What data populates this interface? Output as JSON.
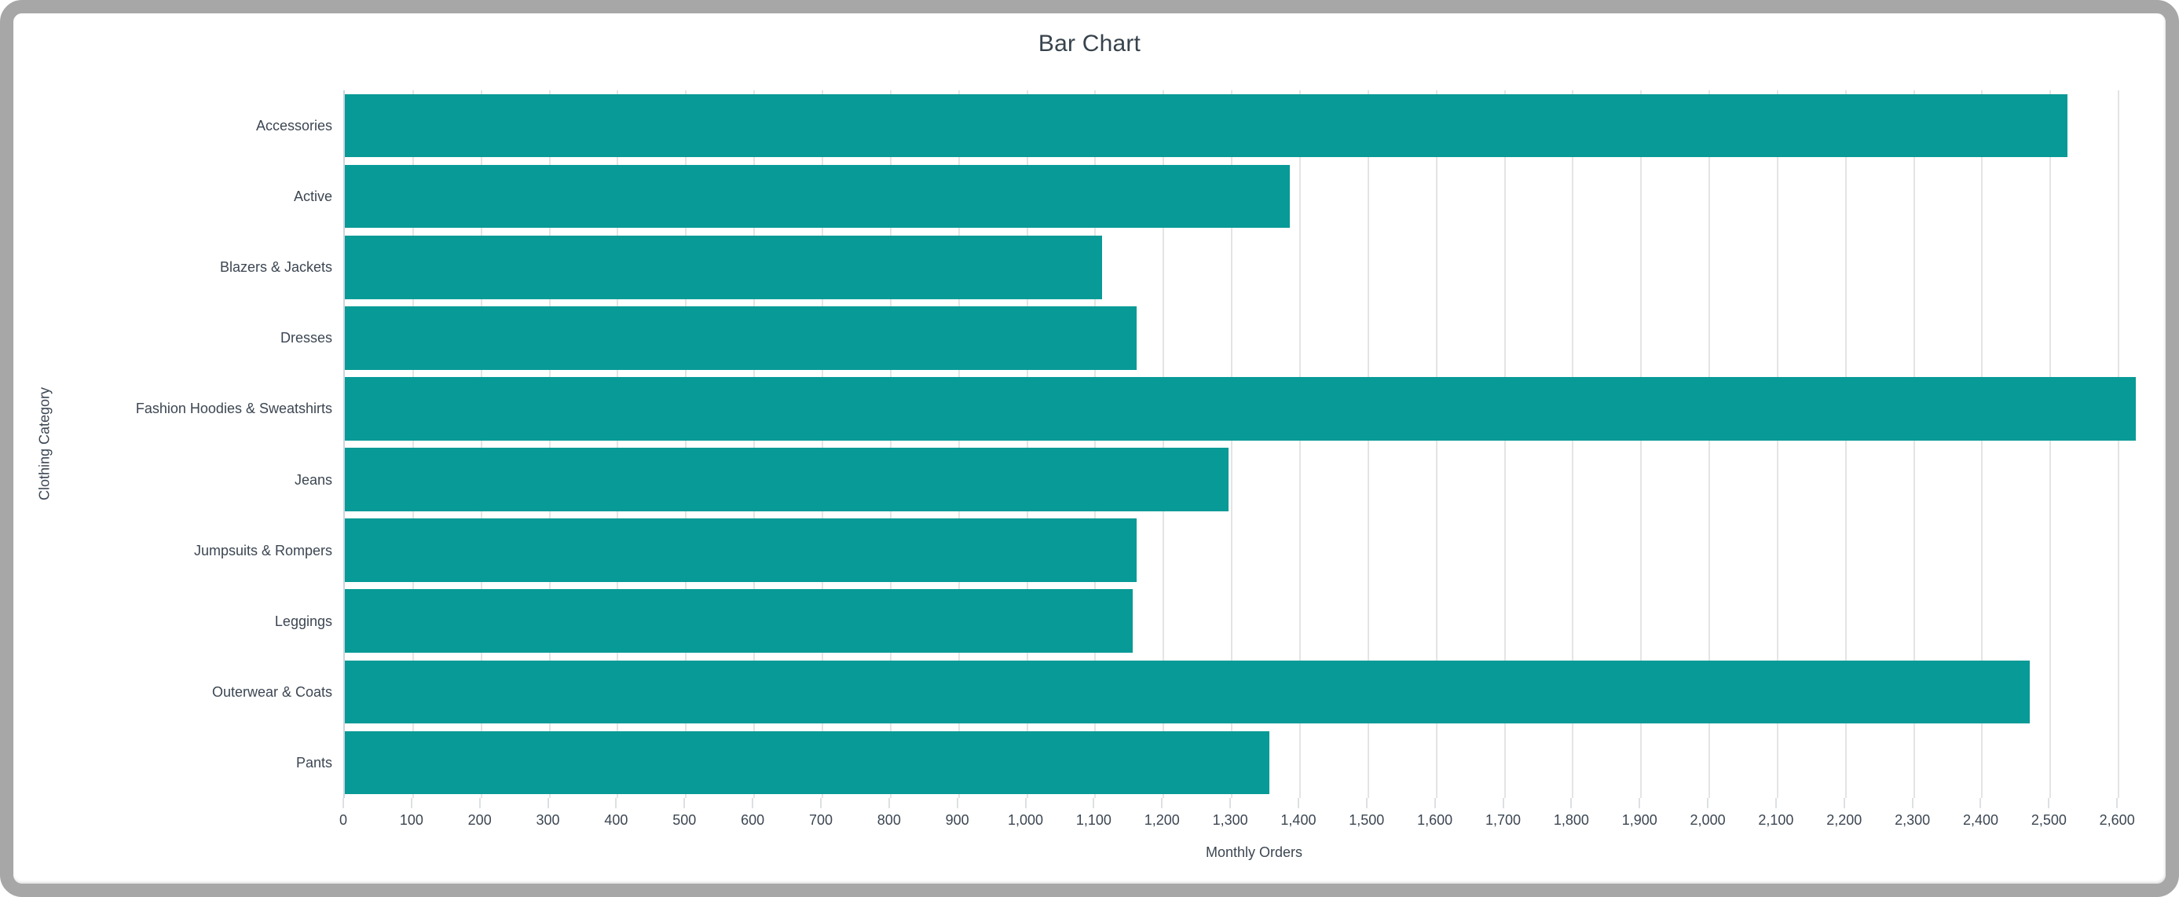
{
  "window": {
    "frame_color": "#a7a7a7",
    "background_color": "#ffffff"
  },
  "chart_data": {
    "type": "bar",
    "orientation": "horizontal",
    "title": "Bar Chart",
    "xlabel": "Monthly Orders",
    "ylabel": "Clothing Category",
    "categories": [
      "Accessories",
      "Active",
      "Blazers & Jackets",
      "Dresses",
      "Fashion Hoodies & Sweatshirts",
      "Jeans",
      "Jumpsuits & Rompers",
      "Leggings",
      "Outerwear & Coats",
      "Pants"
    ],
    "values": [
      2525,
      1385,
      1110,
      1160,
      2625,
      1295,
      1160,
      1155,
      2470,
      1355
    ],
    "xlim": [
      0,
      2670
    ],
    "xticks": [
      0,
      100,
      200,
      300,
      400,
      500,
      600,
      700,
      800,
      900,
      1000,
      1100,
      1200,
      1300,
      1400,
      1500,
      1600,
      1700,
      1800,
      1900,
      2000,
      2100,
      2200,
      2300,
      2400,
      2500,
      2600
    ],
    "xtick_labels": [
      "0",
      "100",
      "200",
      "300",
      "400",
      "500",
      "600",
      "700",
      "800",
      "900",
      "1,000",
      "1,100",
      "1,200",
      "1,300",
      "1,400",
      "1,500",
      "1,600",
      "1,700",
      "1,800",
      "1,900",
      "2,000",
      "2,100",
      "2,200",
      "2,300",
      "2,400",
      "2,500",
      "2,600"
    ],
    "bar_color": "#089a96",
    "grid": true,
    "gridline_color": "#e4e4e4",
    "legend": "none"
  }
}
